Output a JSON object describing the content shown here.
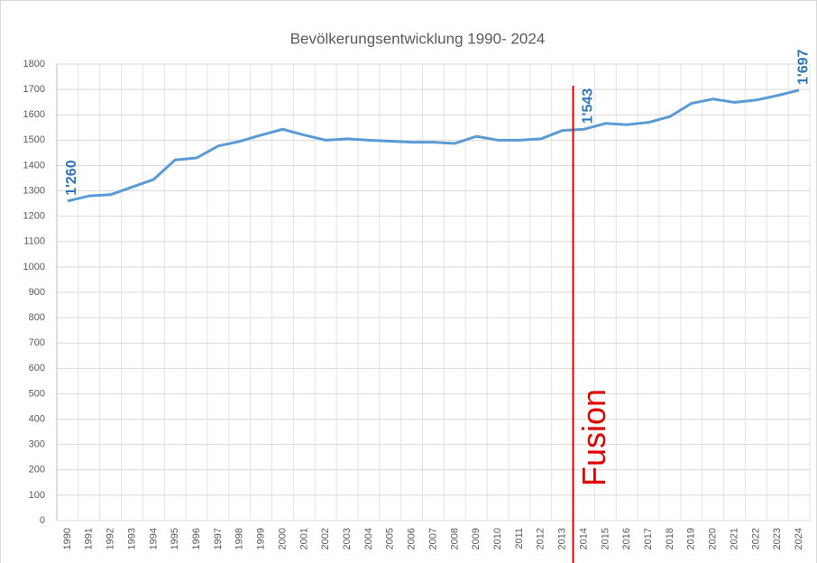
{
  "chart_data": {
    "type": "line",
    "title": "Bevölkerungsentwicklung 1990- 2024",
    "categories": [
      "1990",
      "1991",
      "1992",
      "1993",
      "1994",
      "1995",
      "1996",
      "1997",
      "1998",
      "1999",
      "2000",
      "2001",
      "2002",
      "2003",
      "2004",
      "2005",
      "2006",
      "2007",
      "2008",
      "2009",
      "2010",
      "2011",
      "2012",
      "2013",
      "2014",
      "2015",
      "2016",
      "2017",
      "2018",
      "2019",
      "2020",
      "2021",
      "2022",
      "2023",
      "2024"
    ],
    "values": [
      1260,
      1280,
      1285,
      1315,
      1345,
      1422,
      1430,
      1477,
      1495,
      1520,
      1543,
      1520,
      1500,
      1505,
      1500,
      1496,
      1492,
      1492,
      1487,
      1515,
      1500,
      1500,
      1505,
      1538,
      1543,
      1566,
      1561,
      1570,
      1593,
      1645,
      1662,
      1649,
      1658,
      1676,
      1697
    ],
    "value_labels": [
      "1'260",
      null,
      null,
      null,
      null,
      null,
      null,
      null,
      null,
      null,
      null,
      null,
      null,
      null,
      null,
      null,
      null,
      null,
      null,
      null,
      null,
      null,
      null,
      null,
      "1'543",
      null,
      null,
      null,
      null,
      null,
      null,
      null,
      null,
      null,
      "1'697"
    ],
    "color": "#5b9bd5",
    "label_color": "#2e75b6",
    "ylim": [
      0,
      1800
    ],
    "yticks": [
      0,
      100,
      200,
      300,
      400,
      500,
      600,
      700,
      800,
      900,
      1000,
      1100,
      1200,
      1300,
      1400,
      1500,
      1600,
      1700,
      1800
    ],
    "grid": true,
    "event": {
      "label": "Fusion",
      "after": "2013",
      "color": "#e00000"
    }
  }
}
